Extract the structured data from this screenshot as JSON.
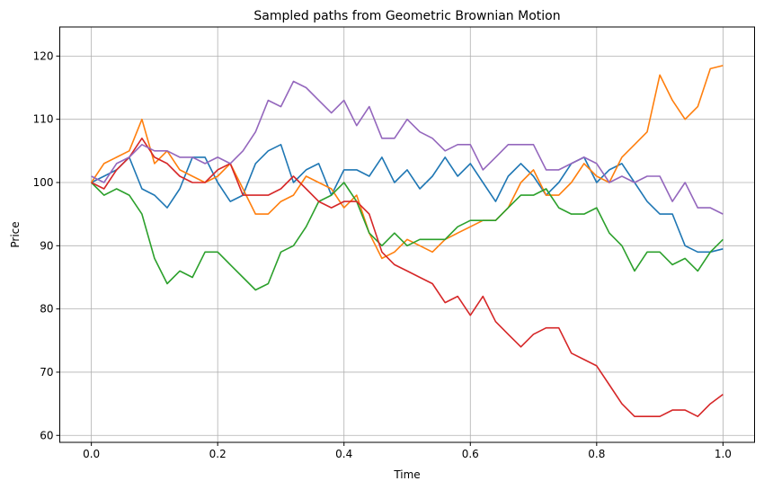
{
  "chart_data": {
    "type": "line",
    "title": "Sampled paths from Geometric Brownian Motion",
    "xlabel": "Time",
    "ylabel": "Price",
    "xlim": [
      -0.05,
      1.05
    ],
    "ylim": [
      58.9,
      124.6
    ],
    "xticks": [
      "0.0",
      "0.2",
      "0.4",
      "0.6",
      "0.8",
      "1.0"
    ],
    "yticks": [
      "60",
      "70",
      "80",
      "90",
      "100",
      "110",
      "120"
    ],
    "grid": true,
    "x": [
      0,
      0.02,
      0.04,
      0.06,
      0.08,
      0.1,
      0.12,
      0.14,
      0.16,
      0.18,
      0.2,
      0.22,
      0.24,
      0.26,
      0.28,
      0.3,
      0.32,
      0.34,
      0.36,
      0.38,
      0.4,
      0.42,
      0.44,
      0.46,
      0.48,
      0.5,
      0.52,
      0.54,
      0.56,
      0.58,
      0.6,
      0.62,
      0.64,
      0.66,
      0.68,
      0.7,
      0.72,
      0.74,
      0.76,
      0.78,
      0.8,
      0.82,
      0.84,
      0.86,
      0.88,
      0.9,
      0.92,
      0.94,
      0.96,
      0.98,
      1.0
    ],
    "series": [
      {
        "color": "#1f77b4",
        "values": [
          100,
          101,
          102,
          104,
          99,
          98,
          96,
          99,
          104,
          104,
          100,
          97,
          98,
          103,
          105,
          106,
          100,
          102,
          103,
          98,
          102,
          102,
          101,
          104,
          100,
          102,
          99,
          101,
          104,
          101,
          103,
          100,
          97,
          101,
          103,
          101,
          98,
          100,
          103,
          104,
          100,
          102,
          103,
          100,
          97,
          95,
          95,
          90,
          89,
          89,
          89.5
        ]
      },
      {
        "color": "#ff7f0e",
        "values": [
          100,
          103,
          104,
          105,
          110,
          103,
          105,
          102,
          101,
          100,
          101,
          103,
          99,
          95,
          95,
          97,
          98,
          101,
          100,
          99,
          96,
          98,
          92,
          88,
          89,
          91,
          90,
          89,
          91,
          92,
          93,
          94,
          94,
          96,
          100,
          102,
          98,
          98,
          100,
          103,
          101,
          100,
          104,
          106,
          108,
          117,
          113,
          110,
          112,
          118,
          118.5
        ]
      },
      {
        "color": "#2ca02c",
        "values": [
          100,
          98,
          99,
          98,
          95,
          88,
          84,
          86,
          85,
          89,
          89,
          87,
          85,
          83,
          84,
          89,
          90,
          93,
          97,
          98,
          100,
          97,
          92,
          90,
          92,
          90,
          91,
          91,
          91,
          93,
          94,
          94,
          94,
          96,
          98,
          98,
          99,
          96,
          95,
          95,
          96,
          92,
          90,
          86,
          89,
          89,
          87,
          88,
          86,
          89,
          91
        ]
      },
      {
        "color": "#d62728",
        "values": [
          100,
          99,
          102,
          104,
          107,
          104,
          103,
          101,
          100,
          100,
          102,
          103,
          98,
          98,
          98,
          99,
          101,
          99,
          97,
          96,
          97,
          97,
          95,
          89,
          87,
          86,
          85,
          84,
          81,
          82,
          79,
          82,
          78,
          76,
          74,
          76,
          77,
          77,
          73,
          72,
          71,
          68,
          65,
          63,
          63,
          63,
          64,
          64,
          63,
          65,
          66.5
        ]
      },
      {
        "color": "#9467bd",
        "values": [
          101,
          100,
          103,
          104,
          106,
          105,
          105,
          104,
          104,
          103,
          104,
          103,
          105,
          108,
          113,
          112,
          116,
          115,
          113,
          111,
          113,
          109,
          112,
          107,
          107,
          110,
          108,
          107,
          105,
          106,
          106,
          102,
          104,
          106,
          106,
          106,
          102,
          102,
          103,
          104,
          103,
          100,
          101,
          100,
          101,
          101,
          97,
          100,
          96,
          96,
          95
        ]
      }
    ]
  }
}
